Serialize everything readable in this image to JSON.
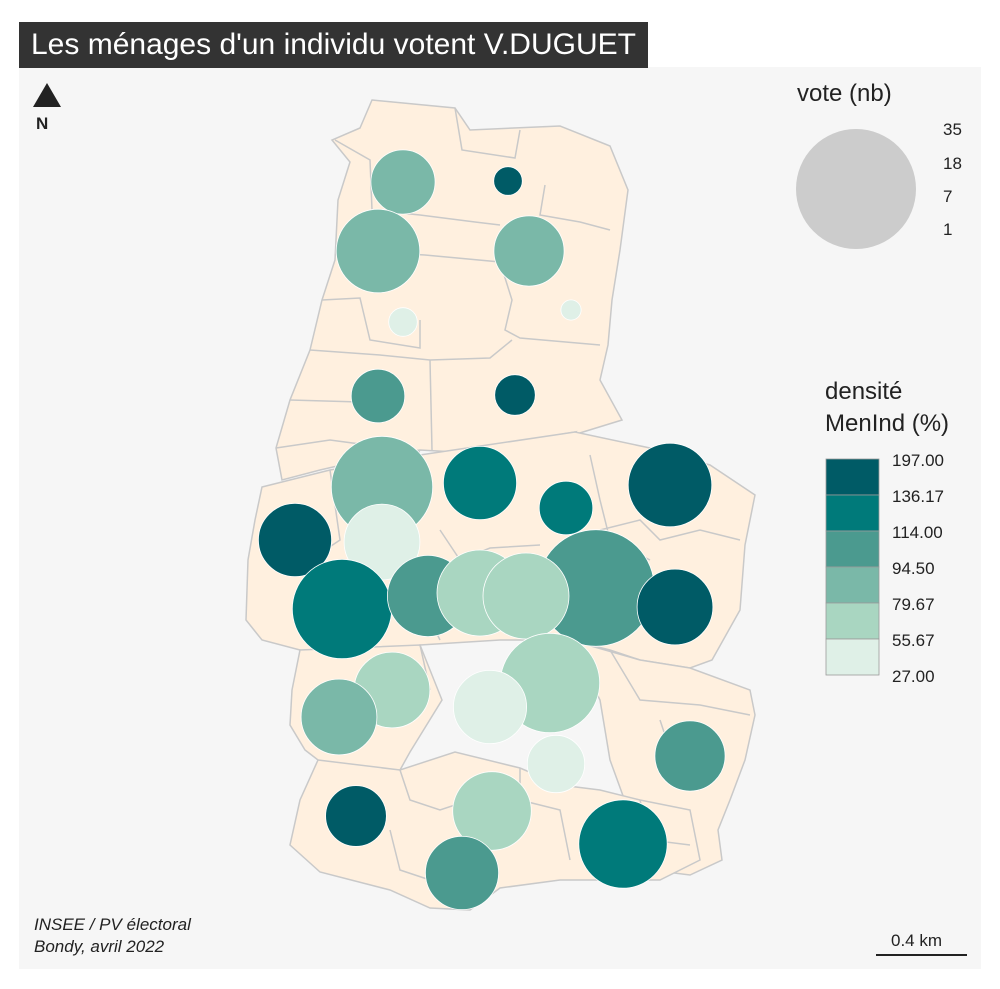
{
  "title": "Les ménages d'un individu votent V.DUGUET",
  "north": {
    "label": "N",
    "icon": "north-arrow-icon"
  },
  "size_legend": {
    "title": "vote (nb)",
    "values": [
      "35",
      "18",
      "7",
      "1"
    ],
    "color": "#cccccc"
  },
  "density_legend": {
    "title_line1": "densité",
    "title_line2": "MenInd (%)",
    "breaks": [
      "197.00",
      "136.17",
      "114.00",
      "94.50",
      "79.67",
      "55.67",
      "27.00"
    ],
    "colors": [
      "#005b66",
      "#007a7a",
      "#4b9a8f",
      "#7ab8a8",
      "#a9d6c1",
      "#dff0e7"
    ]
  },
  "source": {
    "line1": "INSEE / PV électoral",
    "line2": "Bondy, avril 2022"
  },
  "scale": {
    "label": "0.4 km"
  },
  "map_style": {
    "land_fill": "#fff0df",
    "border": "#c9c9c9",
    "background": "#f6f6f6"
  },
  "symbols": [
    {
      "votes": 10,
      "class": 3
    },
    {
      "votes": 2,
      "class": 0
    },
    {
      "votes": 17,
      "class": 3
    },
    {
      "votes": 12,
      "class": 3
    },
    {
      "votes": 2,
      "class": 5
    },
    {
      "votes": 1,
      "class": 5
    },
    {
      "votes": 7,
      "class": 2
    },
    {
      "votes": 4,
      "class": 0
    },
    {
      "votes": 25,
      "class": 3
    },
    {
      "votes": 13,
      "class": 1
    },
    {
      "votes": 7,
      "class": 1
    },
    {
      "votes": 17,
      "class": 0
    },
    {
      "votes": 13,
      "class": 0
    },
    {
      "votes": 14,
      "class": 5
    },
    {
      "votes": 24,
      "class": 1
    },
    {
      "votes": 16,
      "class": 2
    },
    {
      "votes": 33,
      "class": 2
    },
    {
      "votes": 14,
      "class": 0
    },
    {
      "votes": 18,
      "class": 4
    },
    {
      "votes": 18,
      "class": 4
    },
    {
      "votes": 24,
      "class": 4
    },
    {
      "votes": 14,
      "class": 4
    },
    {
      "votes": 14,
      "class": 3
    },
    {
      "votes": 13,
      "class": 5
    },
    {
      "votes": 8,
      "class": 5
    },
    {
      "votes": 12,
      "class": 2
    },
    {
      "votes": 9,
      "class": 0
    },
    {
      "votes": 15,
      "class": 4
    },
    {
      "votes": 19,
      "class": 1
    },
    {
      "votes": 13,
      "class": 2
    }
  ]
}
